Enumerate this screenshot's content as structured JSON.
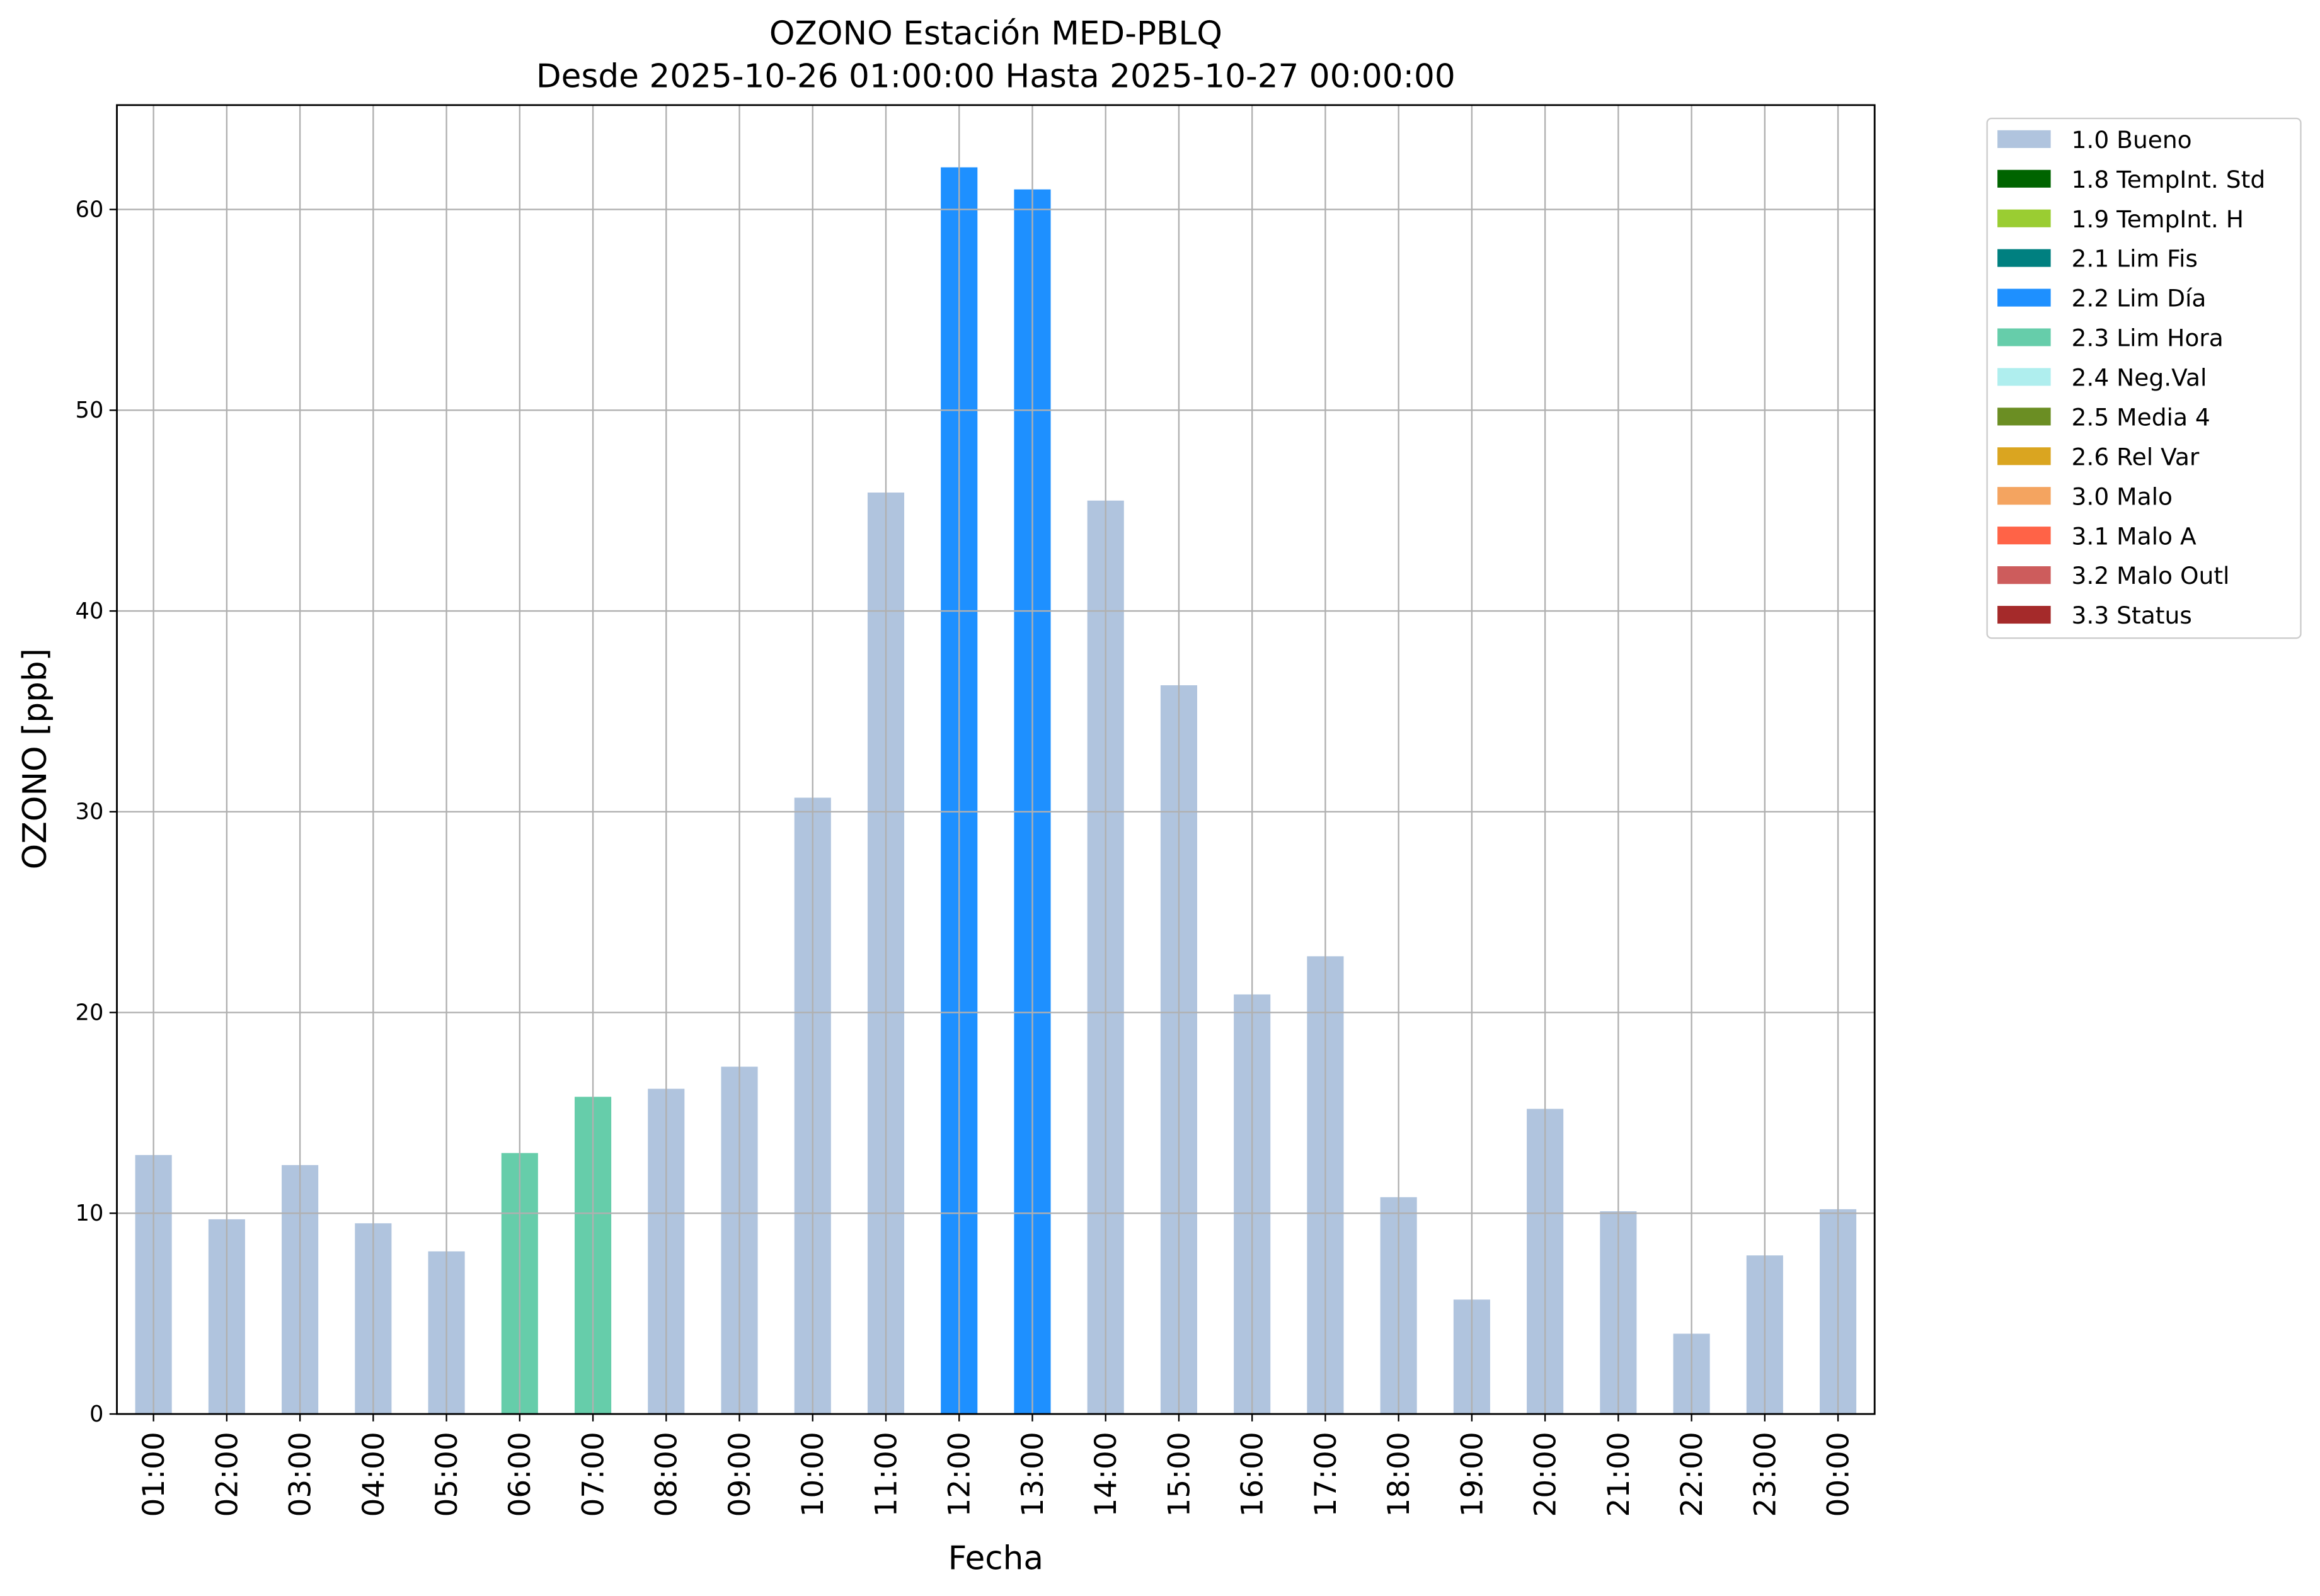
{
  "chart_data": {
    "type": "bar",
    "title": "OZONO Estación MED-PBLQ",
    "subtitle": "Desde 2025-10-26 01:00:00 Hasta 2025-10-27 00:00:00",
    "x_label": "Fecha",
    "y_label": "OZONO [ppb]",
    "categories": [
      "01:00",
      "02:00",
      "03:00",
      "04:00",
      "05:00",
      "06:00",
      "07:00",
      "08:00",
      "09:00",
      "10:00",
      "11:00",
      "12:00",
      "13:00",
      "14:00",
      "15:00",
      "16:00",
      "17:00",
      "18:00",
      "19:00",
      "20:00",
      "21:00",
      "22:00",
      "23:00",
      "00:00"
    ],
    "series": [
      {
        "name": "1.0 Bueno",
        "color": "#b0c4de",
        "values": [
          12.9,
          9.7,
          12.4,
          9.5,
          8.1,
          null,
          null,
          16.2,
          17.3,
          30.7,
          45.9,
          null,
          null,
          45.5,
          36.3,
          20.9,
          22.8,
          10.8,
          5.7,
          15.2,
          10.1,
          4.0,
          7.9,
          10.2
        ]
      },
      {
        "name": "1.8 TempInt. Std",
        "color": "#006400",
        "values": [
          null,
          null,
          null,
          null,
          null,
          null,
          null,
          null,
          null,
          null,
          null,
          null,
          null,
          null,
          null,
          null,
          null,
          null,
          null,
          null,
          null,
          null,
          null,
          null
        ]
      },
      {
        "name": "1.9 TempInt. H",
        "color": "#9acd32",
        "values": [
          null,
          null,
          null,
          null,
          null,
          null,
          null,
          null,
          null,
          null,
          null,
          null,
          null,
          null,
          null,
          null,
          null,
          null,
          null,
          null,
          null,
          null,
          null,
          null
        ]
      },
      {
        "name": "2.1 Lim Fis",
        "color": "#008080",
        "values": [
          null,
          null,
          null,
          null,
          null,
          null,
          null,
          null,
          null,
          null,
          null,
          null,
          null,
          null,
          null,
          null,
          null,
          null,
          null,
          null,
          null,
          null,
          null,
          null
        ]
      },
      {
        "name": "2.2 Lim Día",
        "color": "#1e90ff",
        "values": [
          null,
          null,
          null,
          null,
          null,
          null,
          null,
          null,
          null,
          null,
          null,
          62.1,
          61.0,
          null,
          null,
          null,
          null,
          null,
          null,
          null,
          null,
          null,
          null,
          null
        ]
      },
      {
        "name": "2.3 Lim Hora",
        "color": "#66cdaa",
        "values": [
          null,
          null,
          null,
          null,
          null,
          13.0,
          15.8,
          null,
          null,
          null,
          null,
          null,
          null,
          null,
          null,
          null,
          null,
          null,
          null,
          null,
          null,
          null,
          null,
          null
        ]
      },
      {
        "name": "2.4 Neg.Val",
        "color": "#afeeee",
        "values": [
          null,
          null,
          null,
          null,
          null,
          null,
          null,
          null,
          null,
          null,
          null,
          null,
          null,
          null,
          null,
          null,
          null,
          null,
          null,
          null,
          null,
          null,
          null,
          null
        ]
      },
      {
        "name": "2.5 Media 4",
        "color": "#6b8e23",
        "values": [
          null,
          null,
          null,
          null,
          null,
          null,
          null,
          null,
          null,
          null,
          null,
          null,
          null,
          null,
          null,
          null,
          null,
          null,
          null,
          null,
          null,
          null,
          null,
          null
        ]
      },
      {
        "name": "2.6 Rel Var",
        "color": "#daa520",
        "values": [
          null,
          null,
          null,
          null,
          null,
          null,
          null,
          null,
          null,
          null,
          null,
          null,
          null,
          null,
          null,
          null,
          null,
          null,
          null,
          null,
          null,
          null,
          null,
          null
        ]
      },
      {
        "name": "3.0 Malo",
        "color": "#f4a460",
        "values": [
          null,
          null,
          null,
          null,
          null,
          null,
          null,
          null,
          null,
          null,
          null,
          null,
          null,
          null,
          null,
          null,
          null,
          null,
          null,
          null,
          null,
          null,
          null,
          null
        ]
      },
      {
        "name": "3.1 Malo A",
        "color": "#ff6347",
        "values": [
          null,
          null,
          null,
          null,
          null,
          null,
          null,
          null,
          null,
          null,
          null,
          null,
          null,
          null,
          null,
          null,
          null,
          null,
          null,
          null,
          null,
          null,
          null,
          null
        ]
      },
      {
        "name": "3.2 Malo Outl",
        "color": "#cd5c5c",
        "values": [
          null,
          null,
          null,
          null,
          null,
          null,
          null,
          null,
          null,
          null,
          null,
          null,
          null,
          null,
          null,
          null,
          null,
          null,
          null,
          null,
          null,
          null,
          null,
          null
        ]
      },
      {
        "name": "3.3 Status",
        "color": "#a52a2a",
        "values": [
          null,
          null,
          null,
          null,
          null,
          null,
          null,
          null,
          null,
          null,
          null,
          null,
          null,
          null,
          null,
          null,
          null,
          null,
          null,
          null,
          null,
          null,
          null,
          null
        ]
      }
    ],
    "ylim": [
      0,
      65.2
    ],
    "yticks": [
      0,
      10,
      20,
      30,
      40,
      50,
      60
    ],
    "grid": true,
    "legend": "outside right"
  }
}
